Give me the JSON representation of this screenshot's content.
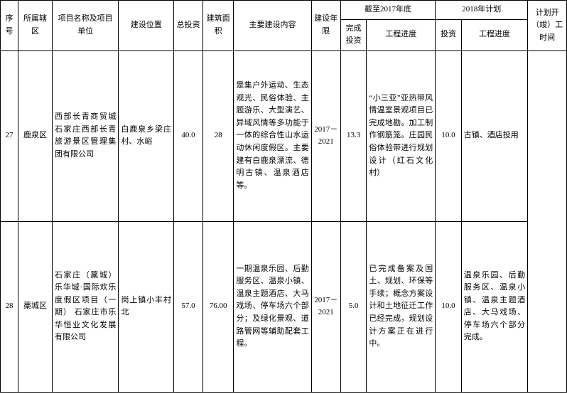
{
  "headers": {
    "seq": "序号",
    "district": "所属辖区",
    "project": "项目名称及项目单位",
    "location": "建设位置",
    "total_invest": "总投资",
    "build_area": "建筑面积",
    "content": "主要建设内容",
    "period": "建设年限",
    "by2017": "截至2017年底",
    "plan2018": "2018年计划",
    "done_invest": "完成投资",
    "progress": "工程进度",
    "invest": "投资",
    "plan_time": "计划开（竣）工时间"
  },
  "rows": [
    {
      "seq": "27",
      "district": "鹿泉区",
      "project": "西部长青商贸城\n石家庄西部长青旅游景区管理集团有限公司",
      "location": "白鹿泉乡梁庄村、水峪",
      "total_invest": "40.0",
      "build_area": "28",
      "content": "是集户外运动、生态观光、民俗体验、主题游乐、大型演艺、异域风情等多功能于一体的综合性山水运动休闲度假区。主要建有白鹿泉漂流、德明古镇、温泉酒店等。",
      "period": "2017－2021",
      "done_invest": "13.3",
      "progress_2017": "“小三亚”亚热带风情温室景观项目已完成地勘。加工制作钢筋笼。庄园民俗体验带进行规划设计（红石文化村）",
      "invest_2018": "10.0",
      "progress_2018": "古镇、酒店投用"
    },
    {
      "seq": "28",
      "district": "藁城区",
      "project": "石家庄（藁城）乐华城·国际欢乐度假区项目（一期）\n石家庄市乐华恒业文化发展有限公司",
      "location": "岗上镇小丰村北",
      "total_invest": "57.0",
      "build_area": "76.00",
      "content": "一期温泉乐园、后勤服务区、温泉小镇、温泉主题酒店、大马戏场、停车场六个部分；及绿化景观、道路管网等辅助配套工程。",
      "period": "2017－2021",
      "done_invest": "5.0",
      "progress_2017": "已完成备案及国土、规划、环保等手续；概念方案设计和土地征迁工作已经完成，规划设计方案正在进行中。",
      "invest_2018": "10.0",
      "progress_2018": "温泉乐园、后勤服务区、温泉小镇、温泉主题酒店、大马戏场、停车场六个部分完成。"
    }
  ]
}
